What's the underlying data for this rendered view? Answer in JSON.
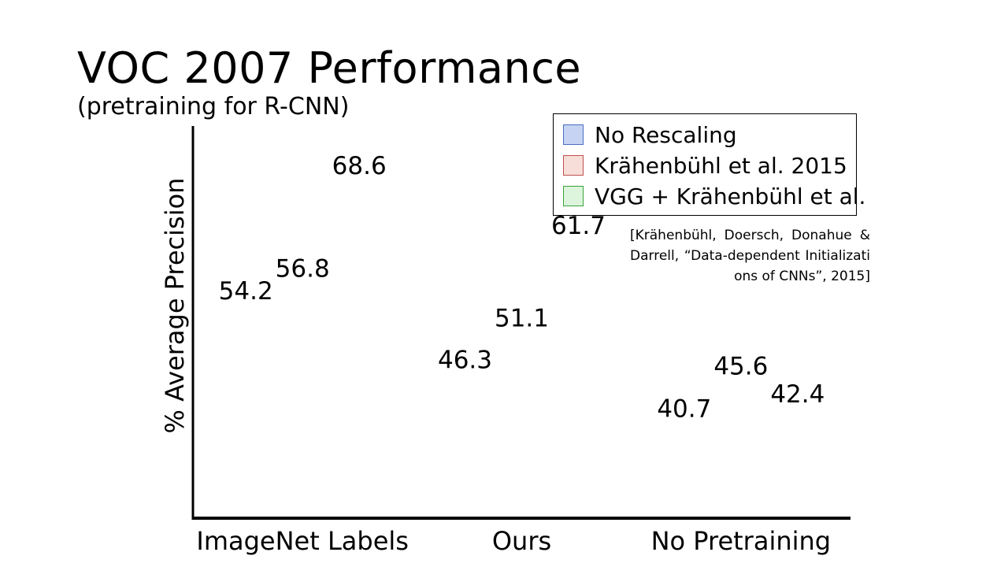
{
  "chart_data": {
    "type": "bar",
    "title": "VOC 2007 Performance",
    "subtitle": "(pretraining for R-CNN)",
    "ylabel": "% Average Precision",
    "xlabel": "",
    "ylim": [
      30,
      75
    ],
    "categories": [
      "ImageNet Labels",
      "Ours",
      "No Pretraining"
    ],
    "series": [
      {
        "name": "No Rescaling",
        "color": "#c6d3f2",
        "border": "#4a6fc1",
        "values": [
          54.2,
          46.3,
          40.7
        ]
      },
      {
        "name": "Krähenbühl et al. 2015",
        "color": "#f8ded8",
        "border": "#c0504d",
        "values": [
          56.8,
          51.1,
          45.6
        ]
      },
      {
        "name": "VGG + Krähenbühl et al.",
        "color": "#dcf5dc",
        "border": "#3aa33a",
        "values": [
          68.6,
          61.7,
          42.4
        ]
      }
    ],
    "legend_position": "top-right",
    "annotation": "[Krähenbühl, Doersch, Donahue & Darrell, “Data-dependent Initializations of CNNs”, 2015]"
  }
}
